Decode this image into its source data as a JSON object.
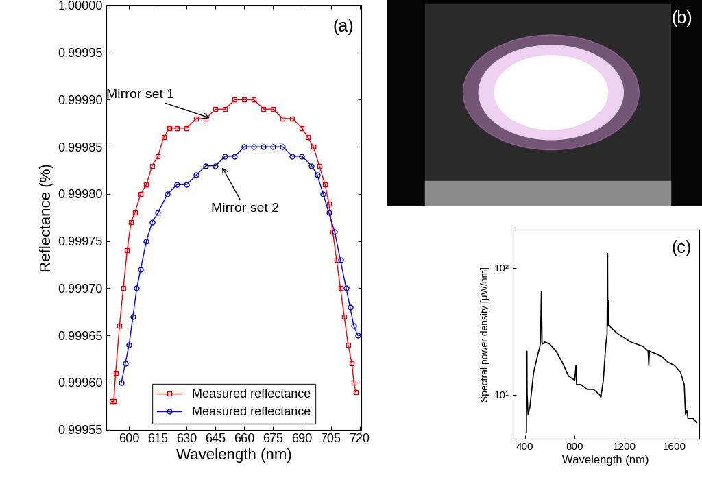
{
  "chart_data": [
    {
      "type": "line",
      "xlabel": "Wavelength (nm)",
      "ylabel": "Reflectance (%)",
      "annotations": [
        {
          "text": "(a)"
        },
        {
          "text": "Mirror set 1",
          "x": 643,
          "y": 0.99988
        },
        {
          "text": "Mirror set 2",
          "x": 648,
          "y": 0.99983
        }
      ],
      "xlim": [
        588,
        721
      ],
      "xticks": [
        600,
        615,
        630,
        645,
        660,
        675,
        690,
        705,
        720
      ],
      "ylim": [
        0.99955,
        1.0
      ],
      "yticks": [
        {
          "value": 0.99955,
          "label": "0.99955"
        },
        {
          "value": 0.9996,
          "label": "0.99960"
        },
        {
          "value": 0.99965,
          "label": "0.99965"
        },
        {
          "value": 0.9997,
          "label": "0.99970"
        },
        {
          "value": 0.99975,
          "label": "0.99975"
        },
        {
          "value": 0.9998,
          "label": "0.99980"
        },
        {
          "value": 0.99985,
          "label": "0.99985"
        },
        {
          "value": 0.9999,
          "label": "0.99990"
        },
        {
          "value": 0.99995,
          "label": "0.99995"
        },
        {
          "value": 1.0,
          "label": "1.00000"
        }
      ],
      "legend": "lower center",
      "series": [
        {
          "name": "Measured reflectance",
          "color": "#e8000b",
          "marker": "square",
          "x": [
            591,
            592,
            593,
            595,
            597,
            599,
            601,
            603,
            606,
            609,
            612,
            615,
            618,
            621,
            625,
            630,
            635,
            640,
            645,
            650,
            655,
            660,
            665,
            670,
            675,
            680,
            685,
            690,
            693,
            696,
            699,
            702,
            704,
            706,
            708,
            710,
            712,
            714,
            716,
            717,
            718
          ],
          "values": [
            0.99958,
            0.99958,
            0.99961,
            0.99966,
            0.9997,
            0.99974,
            0.99977,
            0.99978,
            0.9998,
            0.99981,
            0.99983,
            0.99984,
            0.99986,
            0.99987,
            0.99987,
            0.99987,
            0.99988,
            0.99988,
            0.99989,
            0.99989,
            0.9999,
            0.9999,
            0.9999,
            0.99989,
            0.99989,
            0.99988,
            0.99988,
            0.99987,
            0.99986,
            0.99985,
            0.99983,
            0.99981,
            0.99979,
            0.99976,
            0.99973,
            0.9997,
            0.99967,
            0.99964,
            0.99962,
            0.9996,
            0.99959
          ]
        },
        {
          "name": "Measured reflectance",
          "color": "#0000e0",
          "marker": "circle",
          "x": [
            596,
            598,
            600,
            602,
            604,
            606,
            609,
            612,
            615,
            620,
            625,
            630,
            635,
            640,
            645,
            650,
            655,
            660,
            665,
            670,
            675,
            680,
            685,
            690,
            695,
            698,
            701,
            704,
            707,
            710,
            713,
            715,
            717,
            719
          ],
          "values": [
            0.9996,
            0.99962,
            0.99964,
            0.99967,
            0.9997,
            0.99972,
            0.99975,
            0.99977,
            0.99978,
            0.9998,
            0.99981,
            0.99981,
            0.99982,
            0.99983,
            0.99983,
            0.99984,
            0.99984,
            0.99985,
            0.99985,
            0.99985,
            0.99985,
            0.99985,
            0.99984,
            0.99984,
            0.99983,
            0.99982,
            0.9998,
            0.99978,
            0.99976,
            0.99973,
            0.9997,
            0.99968,
            0.99966,
            0.99965
          ]
        }
      ]
    },
    {
      "type": "line",
      "xlabel": "Wavelength (nm)",
      "ylabel": "Spectral power density [µW/nm]",
      "annotations": [
        {
          "text": "(c)"
        }
      ],
      "log": "y",
      "xlim": [
        300,
        1800
      ],
      "xticks": [
        400,
        800,
        1200,
        1600
      ],
      "ylim": [
        4.5,
        200
      ],
      "yticks": [
        {
          "value": 10,
          "label": "10¹"
        },
        {
          "value": 100,
          "label": "10²"
        }
      ],
      "series": [
        {
          "color": "#000000",
          "x": [
            410,
            412,
            415,
            418,
            425,
            440,
            470,
            500,
            520,
            525,
            532,
            538,
            560,
            600,
            650,
            700,
            750,
            800,
            810,
            815,
            850,
            900,
            950,
            1000,
            1010,
            1030,
            1050,
            1060,
            1064,
            1066,
            1070,
            1075,
            1080,
            1100,
            1150,
            1200,
            1250,
            1300,
            1350,
            1390,
            1395,
            1400,
            1450,
            1500,
            1550,
            1600,
            1650,
            1680,
            1690,
            1700,
            1710,
            1750,
            1780
          ],
          "values": [
            5,
            5,
            22,
            10,
            7,
            8,
            15,
            20,
            24,
            26,
            65,
            25,
            26,
            25,
            22,
            18,
            14,
            13,
            17,
            12,
            12,
            11,
            11,
            10,
            9.5,
            13,
            25,
            30,
            130,
            35,
            55,
            35,
            35,
            33,
            30,
            28,
            26,
            25,
            24,
            22,
            17,
            22,
            21,
            20,
            18,
            17,
            15,
            12,
            7,
            7.5,
            6.5,
            6.5,
            6
          ]
        }
      ]
    }
  ],
  "image": {
    "label": "(b)"
  }
}
